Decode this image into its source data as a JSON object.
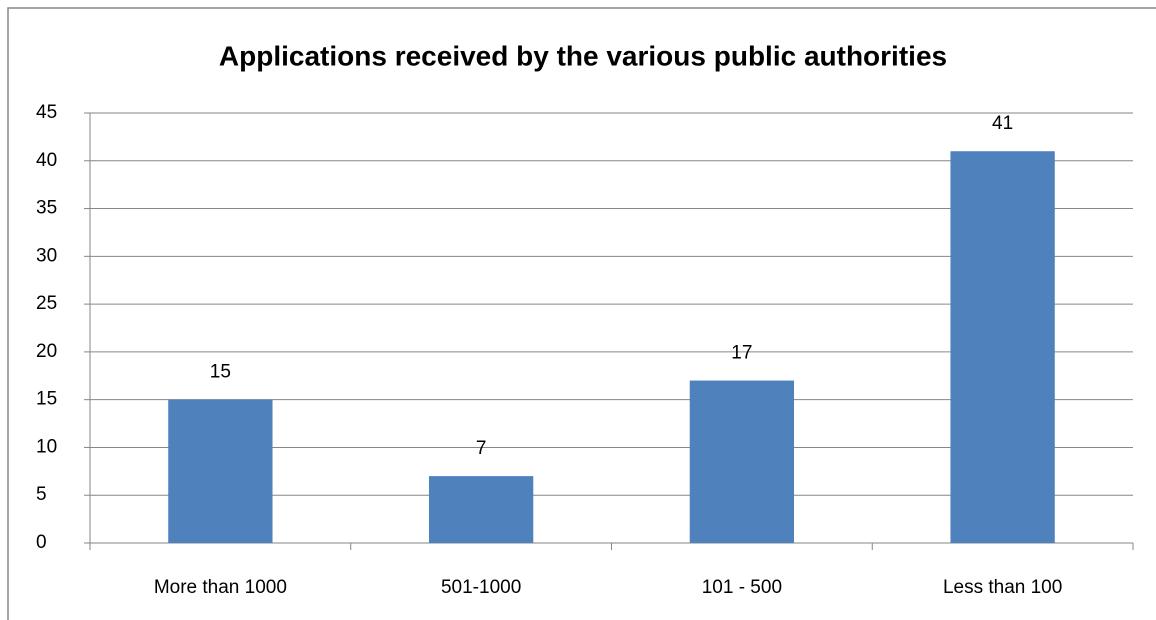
{
  "chart_data": {
    "type": "bar",
    "title": "Applications received by the various public authorities",
    "categories": [
      "More than 1000",
      "501-1000",
      "101 - 500",
      "Less than 100"
    ],
    "values": [
      15,
      7,
      17,
      41
    ],
    "color": "#4f81bd",
    "ylim": [
      0,
      45
    ],
    "yticks": [
      0,
      5,
      10,
      15,
      20,
      25,
      30,
      35,
      40,
      45
    ],
    "grid": true
  }
}
